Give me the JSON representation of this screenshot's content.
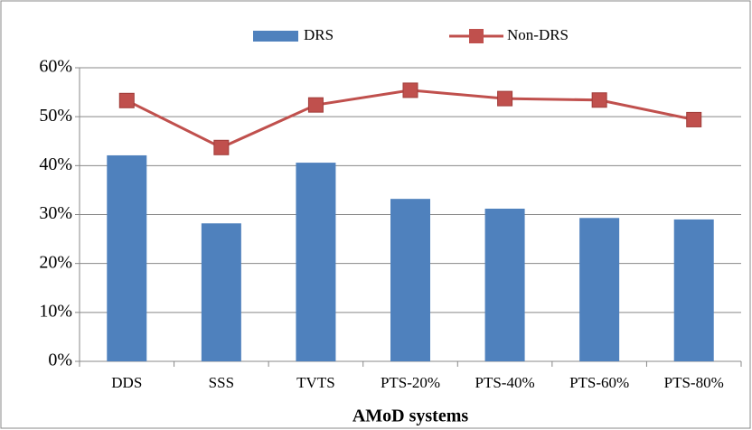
{
  "chart_data": {
    "type": "bar",
    "x_label": "AMoD systems",
    "categories": [
      "DDS",
      "SSS",
      "TVTS",
      "PTS-20%",
      "PTS-40%",
      "PTS-60%",
      "PTS-80%"
    ],
    "series": [
      {
        "name": "DRS",
        "kind": "bar",
        "color": "#4f81bd",
        "values": [
          42.1,
          28.2,
          40.6,
          33.2,
          31.2,
          29.3,
          29.0
        ]
      },
      {
        "name": "Non-DRS",
        "kind": "line",
        "color": "#c0504d",
        "values": [
          53.3,
          43.7,
          52.4,
          55.4,
          53.7,
          53.4,
          49.4
        ]
      }
    ],
    "ylim": [
      0,
      60
    ],
    "yticks": [
      {
        "value": 0,
        "label": "0%"
      },
      {
        "value": 10,
        "label": "10%"
      },
      {
        "value": 20,
        "label": "20%"
      },
      {
        "value": 30,
        "label": "30%"
      },
      {
        "value": 40,
        "label": "40%"
      },
      {
        "value": 50,
        "label": "50%"
      },
      {
        "value": 60,
        "label": "60%"
      }
    ],
    "grid": true
  }
}
